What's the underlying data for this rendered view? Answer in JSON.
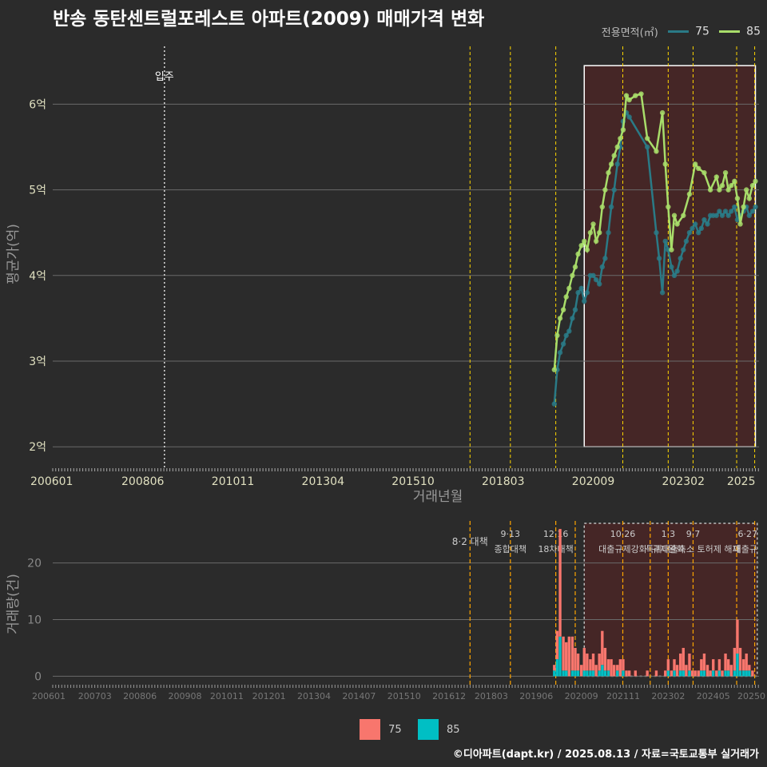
{
  "title": "반송 동탄센트럴포레스트 아파트(2009) 매매가격 변화",
  "legend_top": {
    "label": "전용면적(㎡)",
    "items": [
      {
        "name": "75",
        "color": "#2a7a86"
      },
      {
        "name": "85",
        "color": "#a8dd6a"
      }
    ]
  },
  "legend_bottom": {
    "items": [
      {
        "name": "75",
        "color": "#f8766d"
      },
      {
        "name": "85",
        "color": "#00bfc4"
      }
    ]
  },
  "caption": "©디아파트(dapt.kr) / 2025.08.13 / 자료=국토교통부 실거래가",
  "colors": {
    "background": "#2b2b2b",
    "grid": "#6a6a6a",
    "policy_line": "#ffd700",
    "policy_line_bottom": "#ffa500",
    "highlight_fill": "#4a2626"
  },
  "chart_data": [
    {
      "type": "line",
      "title": "반송 동탄센트럴포레스트 아파트(2009) 매매가격 변화",
      "xlabel": "거래년월",
      "ylabel": "평균가(억)",
      "xlim": [
        2006.0,
        2025.6
      ],
      "ylim": [
        1.75,
        6.75
      ],
      "y_ticks": [
        2,
        3,
        4,
        5,
        6
      ],
      "y_tick_labels": [
        "2억",
        "3억",
        "4억",
        "5억",
        "6억"
      ],
      "x_ticks": [
        2006.0,
        2008.5,
        2011.0,
        2013.5,
        2016.0,
        2018.5,
        2021.0,
        2023.5,
        2025.5
      ],
      "x_tick_labels": [
        "200601",
        "200806",
        "201011",
        "201304",
        "201510",
        "201803",
        "202009",
        "202302",
        "2025"
      ],
      "annotations": [
        {
          "x": 2009.1,
          "label": "입주"
        }
      ],
      "policy_lines": [
        2017.58,
        2018.7,
        2019.96,
        2021.82,
        2023.08,
        2023.77,
        2024.98,
        2025.48
      ],
      "highlight_range": {
        "x": [
          2020.75,
          2025.5
        ],
        "y": [
          2.0,
          6.45
        ]
      },
      "series": [
        {
          "name": "75",
          "x": [
            2019.92,
            2020.0,
            2020.08,
            2020.17,
            2020.25,
            2020.33,
            2020.42,
            2020.5,
            2020.58,
            2020.67,
            2020.75,
            2020.83,
            2020.92,
            2021.0,
            2021.08,
            2021.17,
            2021.25,
            2021.33,
            2021.42,
            2021.5,
            2021.58,
            2021.67,
            2021.75,
            2021.83,
            2021.92,
            2022.0,
            2022.5,
            2022.75,
            2022.83,
            2022.92,
            2023.0,
            2023.08,
            2023.17,
            2023.25,
            2023.33,
            2023.42,
            2023.5,
            2023.58,
            2023.67,
            2023.75,
            2023.83,
            2023.92,
            2024.0,
            2024.08,
            2024.17,
            2024.25,
            2024.33,
            2024.42,
            2024.5,
            2024.58,
            2024.67,
            2024.75,
            2024.83,
            2024.92,
            2025.0,
            2025.08,
            2025.17,
            2025.25,
            2025.33,
            2025.42,
            2025.5
          ],
          "values": [
            2.5,
            2.9,
            3.1,
            3.2,
            3.3,
            3.35,
            3.5,
            3.6,
            3.8,
            3.85,
            3.7,
            3.8,
            4.0,
            4.0,
            3.95,
            3.9,
            4.1,
            4.2,
            4.5,
            4.8,
            5.0,
            5.3,
            5.5,
            5.8,
            5.9,
            5.85,
            5.5,
            4.5,
            4.2,
            3.8,
            4.4,
            4.3,
            4.1,
            4.0,
            4.05,
            4.2,
            4.3,
            4.4,
            4.5,
            4.55,
            4.6,
            4.5,
            4.55,
            4.65,
            4.6,
            4.7,
            4.7,
            4.7,
            4.75,
            4.7,
            4.75,
            4.7,
            4.75,
            4.8,
            4.65,
            4.7,
            4.75,
            4.8,
            4.7,
            4.75,
            4.8
          ]
        },
        {
          "name": "85",
          "x": [
            2019.92,
            2020.0,
            2020.08,
            2020.17,
            2020.25,
            2020.33,
            2020.42,
            2020.5,
            2020.58,
            2020.67,
            2020.75,
            2020.83,
            2020.92,
            2021.0,
            2021.08,
            2021.17,
            2021.25,
            2021.33,
            2021.42,
            2021.5,
            2021.58,
            2021.67,
            2021.75,
            2021.83,
            2021.92,
            2022.0,
            2022.17,
            2022.33,
            2022.5,
            2022.75,
            2022.92,
            2023.0,
            2023.08,
            2023.17,
            2023.25,
            2023.33,
            2023.5,
            2023.67,
            2023.83,
            2023.92,
            2024.08,
            2024.25,
            2024.42,
            2024.5,
            2024.58,
            2024.67,
            2024.75,
            2024.83,
            2024.92,
            2025.0,
            2025.08,
            2025.17,
            2025.25,
            2025.33,
            2025.42,
            2025.5
          ],
          "values": [
            2.9,
            3.3,
            3.5,
            3.6,
            3.75,
            3.85,
            4.0,
            4.1,
            4.25,
            4.35,
            4.4,
            4.3,
            4.5,
            4.6,
            4.4,
            4.5,
            4.8,
            5.0,
            5.2,
            5.3,
            5.4,
            5.5,
            5.6,
            5.7,
            6.1,
            6.05,
            6.1,
            6.12,
            5.6,
            5.45,
            5.9,
            5.3,
            4.8,
            4.3,
            4.7,
            4.6,
            4.7,
            4.95,
            5.3,
            5.25,
            5.2,
            5.0,
            5.15,
            5.0,
            5.05,
            5.2,
            5.0,
            5.05,
            5.1,
            4.9,
            4.6,
            4.8,
            5.0,
            4.9,
            5.05,
            5.1
          ]
        }
      ]
    },
    {
      "type": "bar",
      "xlabel": "",
      "ylabel": "거래량(건)",
      "xlim": [
        2006.0,
        2025.6
      ],
      "ylim": [
        -1.5,
        27
      ],
      "y_ticks": [
        0,
        10,
        20
      ],
      "y_tick_labels": [
        "0",
        "10",
        "20"
      ],
      "x_ticks": [
        2006.0,
        2007.17,
        2008.42,
        2009.67,
        2010.83,
        2012.0,
        2013.25,
        2014.5,
        2015.75,
        2017.0,
        2018.17,
        2019.42,
        2020.67,
        2021.83,
        2023.08,
        2024.33,
        2025.5
      ],
      "x_tick_labels": [
        "200601",
        "200703",
        "200806",
        "200908",
        "201011",
        "201201",
        "201304",
        "201407",
        "201510",
        "201612",
        "201803",
        "201906",
        "202009",
        "202111",
        "202302",
        "202405",
        "20250"
      ],
      "policy_lines": [
        2017.58,
        2018.7,
        2019.96,
        2020.5,
        2021.82,
        2022.58,
        2023.08,
        2023.77,
        2024.98,
        2025.48
      ],
      "policy_labels": [
        {
          "x": 2017.58,
          "line1": "8·2 대책",
          "line2": ""
        },
        {
          "x": 2018.7,
          "line1": "9·13",
          "line2": "종합대책"
        },
        {
          "x": 2019.96,
          "line1": "12·16",
          "line2": "18차대책"
        },
        {
          "x": 2021.82,
          "line1": "10·26",
          "line2": "대출규제강화"
        },
        {
          "x": 2023.08,
          "line1": "1·3",
          "line2": "규제완화"
        },
        {
          "x": 2023.77,
          "line1": "9·7",
          "line2": "특례대출축소 토허제 해제"
        },
        {
          "x": 2025.48,
          "line1": "6·27",
          "line2": "대출규"
        }
      ],
      "highlight_range": {
        "x": [
          2020.75,
          2025.55
        ],
        "y": [
          0,
          27
        ]
      },
      "categories_x": [
        2019.92,
        2020.0,
        2020.08,
        2020.17,
        2020.25,
        2020.33,
        2020.42,
        2020.5,
        2020.58,
        2020.67,
        2020.75,
        2020.83,
        2020.92,
        2021.0,
        2021.08,
        2021.17,
        2021.25,
        2021.33,
        2021.42,
        2021.5,
        2021.58,
        2021.67,
        2021.75,
        2021.83,
        2021.92,
        2022.0,
        2022.17,
        2022.33,
        2022.5,
        2022.75,
        2022.92,
        2023.0,
        2023.08,
        2023.17,
        2023.25,
        2023.33,
        2023.42,
        2023.5,
        2023.58,
        2023.67,
        2023.75,
        2023.83,
        2023.92,
        2024.0,
        2024.08,
        2024.17,
        2024.25,
        2024.33,
        2024.42,
        2024.5,
        2024.58,
        2024.67,
        2024.75,
        2024.83,
        2024.92,
        2025.0,
        2025.08,
        2025.17,
        2025.25,
        2025.33,
        2025.42
      ],
      "series": [
        {
          "name": "75",
          "values": [
            1,
            5,
            19,
            6,
            5,
            7,
            6,
            4,
            3,
            2,
            4,
            3,
            2,
            3,
            2,
            3,
            6,
            4,
            2,
            3,
            2,
            1,
            3,
            2,
            1,
            1,
            1,
            0,
            1,
            1,
            0,
            1,
            2,
            1,
            2,
            2,
            3,
            4,
            2,
            3,
            1,
            1,
            1,
            2,
            3,
            2,
            1,
            2,
            1,
            2,
            1,
            3,
            2,
            2,
            4,
            6,
            4,
            2,
            3,
            1,
            1
          ]
        },
        {
          "name": "85",
          "values": [
            1,
            3,
            7,
            1,
            1,
            0,
            1,
            1,
            1,
            0,
            1,
            1,
            1,
            1,
            0,
            1,
            2,
            1,
            1,
            0,
            0,
            1,
            0,
            1,
            0,
            0,
            0,
            0,
            0,
            0,
            0,
            0,
            1,
            0,
            1,
            0,
            1,
            1,
            0,
            1,
            0,
            0,
            0,
            1,
            1,
            0,
            0,
            1,
            0,
            1,
            0,
            1,
            1,
            0,
            1,
            4,
            1,
            1,
            1,
            1,
            0
          ]
        }
      ]
    }
  ]
}
